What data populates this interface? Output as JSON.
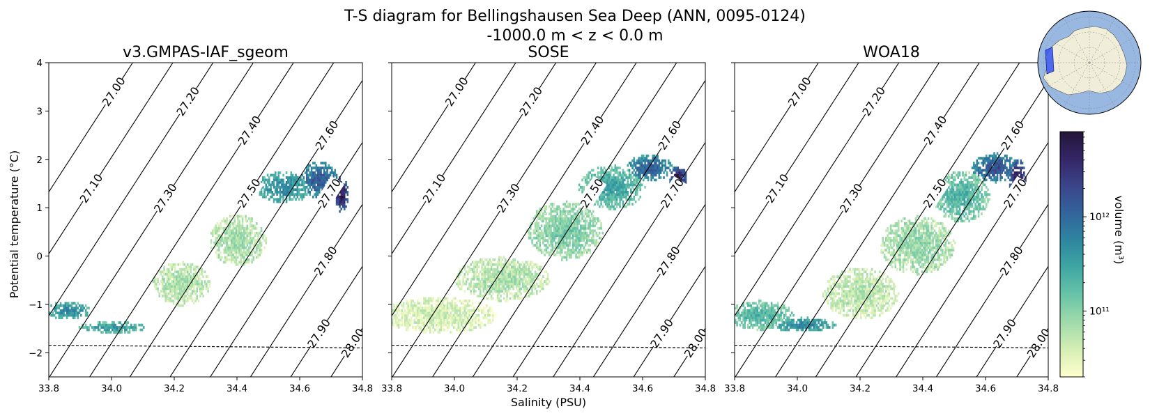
{
  "chart_data": {
    "type": "heatmap",
    "title_line1": "T-S diagram for Bellingshausen Sea Deep (ANN, 0095-0124)",
    "title_line2": "-1000.0 m < z < 0.0 m",
    "xlabel": "Salinity (PSU)",
    "ylabel": "Potential temperature (°C)",
    "xlim": [
      33.8,
      34.8
    ],
    "ylim": [
      -2.5,
      4
    ],
    "xticks": [
      "33.8",
      "34.0",
      "34.2",
      "34.4",
      "34.6",
      "34.8"
    ],
    "yticks": [
      "4",
      "3",
      "2",
      "1",
      "0",
      "−1",
      "−2"
    ],
    "ytick_values": [
      4,
      3,
      2,
      1,
      0,
      -1,
      -2
    ],
    "xtick_values": [
      33.8,
      34.0,
      34.2,
      34.4,
      34.6,
      34.8
    ],
    "freezing_line": [
      [
        33.8,
        -1.845
      ],
      [
        34.8,
        -1.9
      ]
    ],
    "density_contours": [
      {
        "label": "27.00",
        "sigma": 27.0
      },
      {
        "label": "27.10",
        "sigma": 27.1
      },
      {
        "label": "27.20",
        "sigma": 27.2
      },
      {
        "label": "27.30",
        "sigma": 27.3
      },
      {
        "label": "27.40",
        "sigma": 27.4
      },
      {
        "label": "27.50",
        "sigma": 27.5
      },
      {
        "label": "27.60",
        "sigma": 27.6
      },
      {
        "label": "27.70",
        "sigma": 27.7
      },
      {
        "label": "27.80",
        "sigma": 27.8
      },
      {
        "label": "27.90",
        "sigma": 27.9
      },
      {
        "label": "28.00",
        "sigma": 28.0
      }
    ],
    "panels": [
      {
        "title": "v3.GMPAS-IAF_sgeom",
        "blobs": [
          {
            "S": 33.86,
            "T": -1.15,
            "sS": 0.05,
            "sT": 0.12,
            "level": 0.55
          },
          {
            "S": 34.0,
            "T": -1.5,
            "sS": 0.07,
            "sT": 0.08,
            "level": 0.5
          },
          {
            "S": 34.22,
            "T": -0.6,
            "sS": 0.06,
            "sT": 0.3,
            "level": 0.2
          },
          {
            "S": 34.4,
            "T": 0.3,
            "sS": 0.06,
            "sT": 0.35,
            "level": 0.22
          },
          {
            "S": 34.55,
            "T": 1.4,
            "sS": 0.06,
            "sT": 0.22,
            "level": 0.55
          },
          {
            "S": 34.66,
            "T": 1.55,
            "sS": 0.04,
            "sT": 0.25,
            "level": 0.72
          },
          {
            "S": 34.73,
            "T": 1.25,
            "sS": 0.015,
            "sT": 0.25,
            "level": 0.95
          }
        ]
      },
      {
        "title": "SOSE",
        "blobs": [
          {
            "S": 33.95,
            "T": -1.25,
            "sS": 0.12,
            "sT": 0.25,
            "level": 0.12
          },
          {
            "S": 34.15,
            "T": -0.5,
            "sS": 0.1,
            "sT": 0.3,
            "level": 0.2
          },
          {
            "S": 34.35,
            "T": 0.5,
            "sS": 0.08,
            "sT": 0.4,
            "level": 0.3
          },
          {
            "S": 34.5,
            "T": 1.4,
            "sS": 0.07,
            "sT": 0.3,
            "level": 0.45
          },
          {
            "S": 34.62,
            "T": 1.8,
            "sS": 0.05,
            "sT": 0.18,
            "level": 0.7
          },
          {
            "S": 34.71,
            "T": 1.6,
            "sS": 0.02,
            "sT": 0.15,
            "level": 0.95
          }
        ]
      },
      {
        "title": "WOA18",
        "blobs": [
          {
            "S": 33.88,
            "T": -1.25,
            "sS": 0.07,
            "sT": 0.2,
            "level": 0.4
          },
          {
            "S": 34.02,
            "T": -1.45,
            "sS": 0.07,
            "sT": 0.1,
            "level": 0.55
          },
          {
            "S": 34.2,
            "T": -0.8,
            "sS": 0.08,
            "sT": 0.35,
            "level": 0.18
          },
          {
            "S": 34.38,
            "T": 0.2,
            "sS": 0.08,
            "sT": 0.4,
            "level": 0.25
          },
          {
            "S": 34.52,
            "T": 1.2,
            "sS": 0.06,
            "sT": 0.35,
            "level": 0.4
          },
          {
            "S": 34.63,
            "T": 1.8,
            "sS": 0.05,
            "sT": 0.2,
            "level": 0.75
          },
          {
            "S": 34.7,
            "T": 1.6,
            "sS": 0.02,
            "sT": 0.25,
            "level": 0.95
          }
        ]
      }
    ],
    "colorbar": {
      "label": "volume (m³)",
      "scale": "log",
      "range": [
        20000000000.0,
        8000000000000.0
      ],
      "ticks": [
        {
          "value": 1000000000000.0,
          "label": "10¹²"
        },
        {
          "value": 100000000000.0,
          "label": "10¹¹"
        }
      ],
      "colors": [
        "#ffffcc",
        "#d5efb4",
        "#a1dbab",
        "#69c4a8",
        "#40a7a3",
        "#2e86a0",
        "#32659c",
        "#3b458a",
        "#342666",
        "#231538"
      ]
    },
    "inset_map": {
      "ocean_color": "#98b8e1",
      "land_color": "#f0eed9",
      "region_color": "#3253ed"
    }
  }
}
